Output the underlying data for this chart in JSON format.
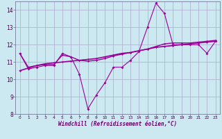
{
  "x": [
    0,
    1,
    2,
    3,
    4,
    5,
    6,
    7,
    8,
    9,
    10,
    11,
    12,
    13,
    14,
    15,
    16,
    17,
    18,
    19,
    20,
    21,
    22,
    23
  ],
  "line_jagged": [
    11.5,
    10.6,
    10.7,
    10.8,
    10.8,
    11.5,
    11.3,
    10.3,
    8.3,
    9.1,
    9.8,
    10.7,
    10.7,
    11.1,
    11.6,
    13.0,
    14.4,
    13.8,
    12.0,
    12.0,
    12.0,
    12.0,
    11.5,
    12.2
  ],
  "line_smooth": [
    11.5,
    10.7,
    10.8,
    10.85,
    10.85,
    11.4,
    11.3,
    11.1,
    11.05,
    11.1,
    11.2,
    11.35,
    11.45,
    11.55,
    11.65,
    11.75,
    11.9,
    12.05,
    12.1,
    12.1,
    12.1,
    12.15,
    12.2,
    12.25
  ],
  "line_linear": [
    10.5,
    10.65,
    10.8,
    10.9,
    10.95,
    11.0,
    11.05,
    11.1,
    11.15,
    11.2,
    11.3,
    11.4,
    11.5,
    11.55,
    11.65,
    11.75,
    11.85,
    11.9,
    11.95,
    12.0,
    12.05,
    12.1,
    12.15,
    12.2
  ],
  "color": "#990099",
  "bg_color": "#cce8f0",
  "grid_color": "#aaaacc",
  "xlabel": "Windchill (Refroidissement éolien,°C)",
  "ylim": [
    8,
    14.5
  ],
  "xlim_min": -0.5,
  "xlim_max": 23.5,
  "yticks": [
    8,
    9,
    10,
    11,
    12,
    13,
    14
  ],
  "xticks": [
    0,
    1,
    2,
    3,
    4,
    5,
    6,
    7,
    8,
    9,
    10,
    11,
    12,
    13,
    14,
    15,
    16,
    17,
    18,
    19,
    20,
    21,
    22,
    23
  ]
}
